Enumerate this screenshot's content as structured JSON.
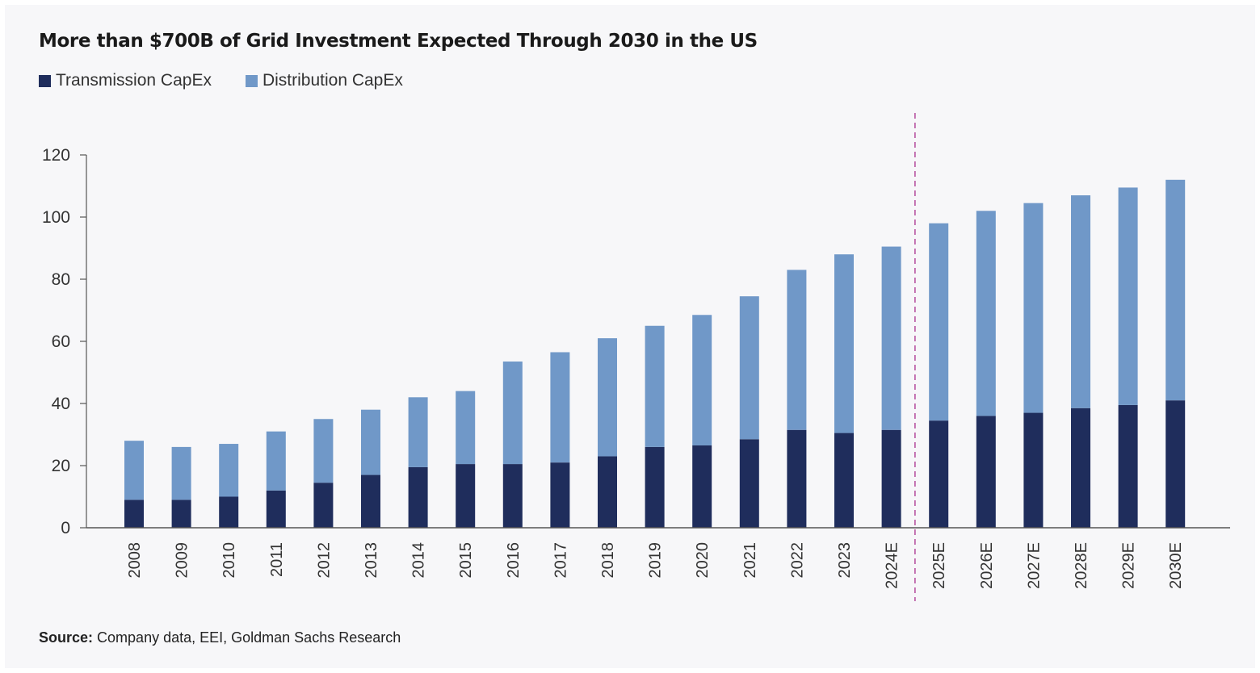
{
  "colors": {
    "transmission": "#1f2d5c",
    "distribution": "#7098c8",
    "divider": "#b3479a",
    "axis": "#555555"
  },
  "chart_data": {
    "type": "bar",
    "stacked": true,
    "title": "More than $700B of Grid Investment Expected Through 2030 in the US",
    "xlabel": "",
    "ylabel": "",
    "ylim": [
      0,
      120
    ],
    "yticks": [
      0,
      20,
      40,
      60,
      80,
      100,
      120
    ],
    "categories": [
      "2008",
      "2009",
      "2010",
      "2011",
      "2012",
      "2013",
      "2014",
      "2015",
      "2016",
      "2017",
      "2018",
      "2019",
      "2020",
      "2021",
      "2022",
      "2023",
      "2024E",
      "2025E",
      "2026E",
      "2027E",
      "2028E",
      "2029E",
      "2030E"
    ],
    "series": [
      {
        "name": "Transmission CapEx",
        "values": [
          9,
          9,
          10,
          12,
          14.5,
          17,
          19.5,
          20.5,
          20.5,
          21,
          23,
          26,
          26.5,
          28.5,
          31.5,
          30.5,
          31.5,
          34.5,
          36,
          37,
          38.5,
          39.5,
          41
        ]
      },
      {
        "name": "Distribution CapEx",
        "values": [
          19,
          17,
          17,
          19,
          20.5,
          21,
          22.5,
          23.5,
          33,
          35.5,
          38,
          39,
          42,
          46,
          51.5,
          57.5,
          59,
          63.5,
          66,
          67.5,
          68.5,
          70,
          71
        ]
      }
    ],
    "legend": [
      "Transmission CapEx",
      "Distribution CapEx"
    ],
    "legend_position": "top-left",
    "divider_after": "2024E",
    "grid": false
  },
  "source": {
    "label": "Source:",
    "text": "Company data, EEI, Goldman Sachs Research"
  }
}
